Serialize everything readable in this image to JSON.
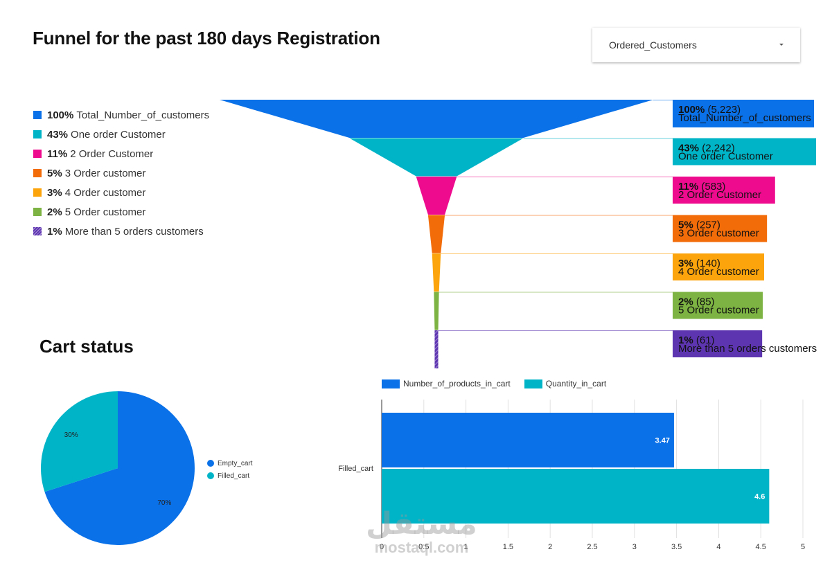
{
  "funnel": {
    "title": "Funnel for the past 180 days Registration",
    "dropdown_value": "Ordered_Customers",
    "stages": [
      {
        "pct": "100%",
        "count": "(5,223)",
        "name": "Total_Number_of_customers",
        "value": 5223,
        "color": "#0a71e8"
      },
      {
        "pct": "43%",
        "count": "(2,242)",
        "name": "One order Customer",
        "value": 2242,
        "color": "#00b4c8"
      },
      {
        "pct": "11%",
        "count": "(583)",
        "name": "2 Order Customer",
        "value": 583,
        "color": "#ee0b8e"
      },
      {
        "pct": "5%",
        "count": "(257)",
        "name": "3 Order customer",
        "value": 257,
        "color": "#f36c0a"
      },
      {
        "pct": "3%",
        "count": "(140)",
        "name": "4 Order customer",
        "value": 140,
        "color": "#fba40b"
      },
      {
        "pct": "2%",
        "count": "(85)",
        "name": "5 Order customer",
        "value": 85,
        "color": "#7cb342"
      },
      {
        "pct": "1%",
        "count": "(61)",
        "name": "More than 5 orders customers",
        "value": 61,
        "color": "#5e35b1",
        "pattern": true
      }
    ]
  },
  "cart": {
    "title": "Cart status"
  },
  "chart_data": [
    {
      "type": "pie",
      "labels": [
        "Empty_cart",
        "Filled_cart"
      ],
      "values": [
        70,
        30
      ],
      "value_labels": [
        "70%",
        "30%"
      ],
      "colors": [
        "#0a71e8",
        "#00b4c8"
      ]
    },
    {
      "type": "bar",
      "orientation": "horizontal",
      "categories": [
        "Filled_cart"
      ],
      "series": [
        {
          "name": "Number_of_products_in_cart",
          "values": [
            3.47
          ],
          "label": "3.47",
          "color": "#0a71e8"
        },
        {
          "name": "Quantity_in_cart",
          "values": [
            4.6
          ],
          "label": "4.6",
          "color": "#00b4c8"
        }
      ],
      "xlim": [
        0,
        5
      ],
      "xticks": [
        "0",
        "0.5",
        "1",
        "1.5",
        "2",
        "2.5",
        "3",
        "3.5",
        "4",
        "4.5",
        "5"
      ],
      "grid": true,
      "legend": "top-left"
    }
  ],
  "watermark": {
    "arabic": "مستقل",
    "latin": "mostaql.com"
  }
}
